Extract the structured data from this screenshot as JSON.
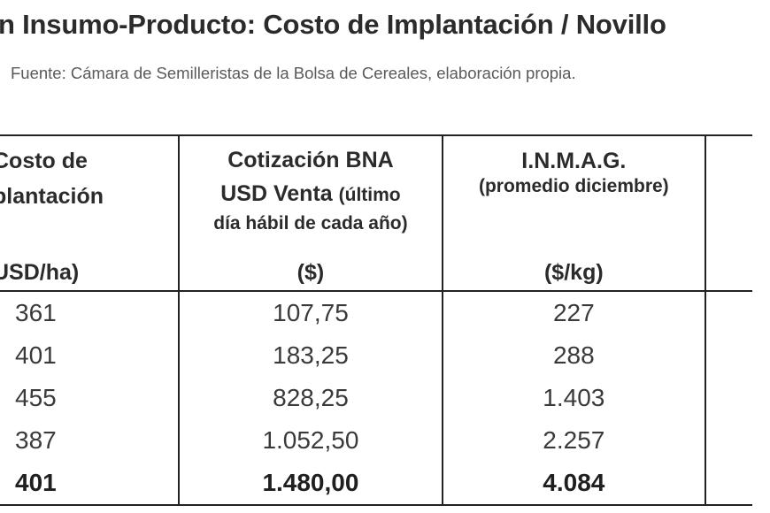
{
  "title": "n Insumo-Producto: Costo de Implantación / Novillo",
  "subtitle": "Fuente: Cámara de Semilleristas de la Bolsa de Cereales, elaboración propia.",
  "table": {
    "headers": [
      {
        "main": "Costo de",
        "main2": "plantación",
        "unit": "USD/ha)"
      },
      {
        "main": "Cotización BNA",
        "main2": "USD Venta",
        "main2_note": "(último",
        "sub": "día hábil de cada año)",
        "unit": "($)"
      },
      {
        "main": "I.N.M.A.G.",
        "sub": "(promedio diciembre)",
        "unit": "($/kg)"
      },
      {
        "main": ""
      }
    ],
    "rows": [
      {
        "costo": "361",
        "cotizacion": "107,75",
        "inmag": "227"
      },
      {
        "costo": "401",
        "cotizacion": "183,25",
        "inmag": "288"
      },
      {
        "costo": "455",
        "cotizacion": "828,25",
        "inmag": "1.403"
      },
      {
        "costo": "387",
        "cotizacion": "1.052,50",
        "inmag": "2.257"
      },
      {
        "costo": "401",
        "cotizacion": "1.480,00",
        "inmag": "4.084"
      }
    ]
  }
}
